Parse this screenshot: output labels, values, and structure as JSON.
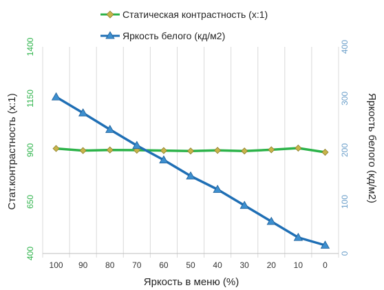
{
  "chart_data": {
    "type": "line",
    "x": [
      100,
      90,
      80,
      70,
      60,
      50,
      40,
      30,
      20,
      10,
      0
    ],
    "xlabel": "Яркость в меню (%)",
    "ylabel_left": "Стат.контрастность  (x:1)",
    "ylabel_right": "Яркость белого (кд/м2)",
    "ylim_left": [
      400,
      1400
    ],
    "ylim_right": [
      0,
      400
    ],
    "yticks_left": [
      "400",
      "650",
      "900",
      "1150",
      "1400"
    ],
    "yticks_right": [
      "0",
      "100",
      "200",
      "300",
      "400"
    ],
    "xticks": [
      "100",
      "90",
      "80",
      "70",
      "60",
      "50",
      "40",
      "30",
      "20",
      "10",
      "0"
    ],
    "grid": "vertical",
    "legend_position": "top",
    "series": [
      {
        "name": "Статическая контрастность (x:1)",
        "axis": "left",
        "marker": "diamond",
        "color": "#2db34a",
        "marker_color": "#c8b44a",
        "values": [
          908,
          898,
          901,
          900,
          898,
          896,
          899,
          896,
          902,
          910,
          890
        ]
      },
      {
        "name": "Яркость белого (кд/м2)",
        "axis": "right",
        "marker": "triangle",
        "color": "#1f6fb5",
        "marker_color": "#3d8fcf",
        "values": [
          303,
          272,
          240,
          209,
          181,
          150,
          124,
          93,
          62,
          31,
          16
        ]
      }
    ],
    "colors": {
      "left_axis_text": "#2db34a",
      "right_axis_text": "#6a9ec9",
      "grid": "#d9d9d9"
    }
  }
}
